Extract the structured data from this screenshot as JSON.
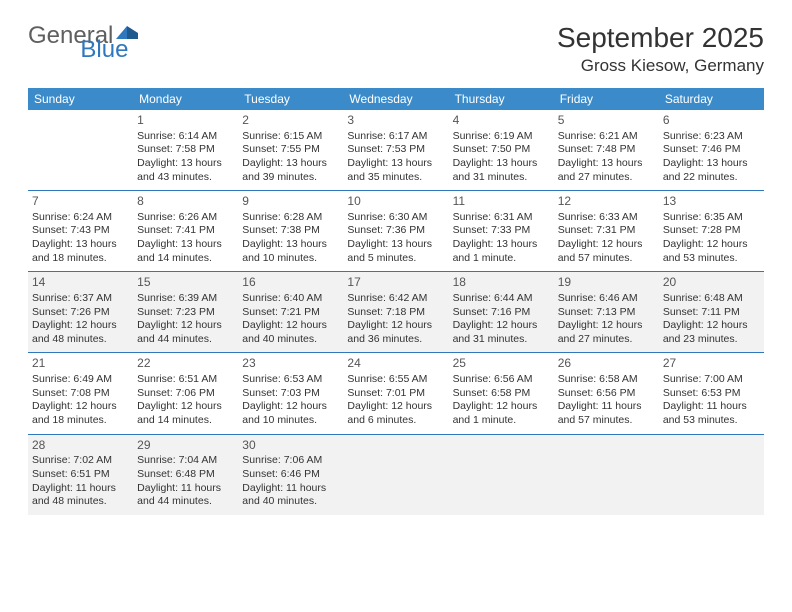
{
  "logo": {
    "g": "General",
    "b": "Blue"
  },
  "title": "September 2025",
  "location": "Gross Kiesow, Germany",
  "colors": {
    "header_bg": "#3b8bca",
    "header_text": "#ffffff",
    "rule": "#2f78bd",
    "alt_row": "#f2f2f2",
    "text": "#333333",
    "logo_gray": "#5f5f5f",
    "logo_blue": "#2f78bd"
  },
  "days_of_week": [
    "Sunday",
    "Monday",
    "Tuesday",
    "Wednesday",
    "Thursday",
    "Friday",
    "Saturday"
  ],
  "weeks": [
    [
      null,
      {
        "n": "1",
        "sr": "Sunrise: 6:14 AM",
        "ss": "Sunset: 7:58 PM",
        "d1": "Daylight: 13 hours",
        "d2": "and 43 minutes."
      },
      {
        "n": "2",
        "sr": "Sunrise: 6:15 AM",
        "ss": "Sunset: 7:55 PM",
        "d1": "Daylight: 13 hours",
        "d2": "and 39 minutes."
      },
      {
        "n": "3",
        "sr": "Sunrise: 6:17 AM",
        "ss": "Sunset: 7:53 PM",
        "d1": "Daylight: 13 hours",
        "d2": "and 35 minutes."
      },
      {
        "n": "4",
        "sr": "Sunrise: 6:19 AM",
        "ss": "Sunset: 7:50 PM",
        "d1": "Daylight: 13 hours",
        "d2": "and 31 minutes."
      },
      {
        "n": "5",
        "sr": "Sunrise: 6:21 AM",
        "ss": "Sunset: 7:48 PM",
        "d1": "Daylight: 13 hours",
        "d2": "and 27 minutes."
      },
      {
        "n": "6",
        "sr": "Sunrise: 6:23 AM",
        "ss": "Sunset: 7:46 PM",
        "d1": "Daylight: 13 hours",
        "d2": "and 22 minutes."
      }
    ],
    [
      {
        "n": "7",
        "sr": "Sunrise: 6:24 AM",
        "ss": "Sunset: 7:43 PM",
        "d1": "Daylight: 13 hours",
        "d2": "and 18 minutes."
      },
      {
        "n": "8",
        "sr": "Sunrise: 6:26 AM",
        "ss": "Sunset: 7:41 PM",
        "d1": "Daylight: 13 hours",
        "d2": "and 14 minutes."
      },
      {
        "n": "9",
        "sr": "Sunrise: 6:28 AM",
        "ss": "Sunset: 7:38 PM",
        "d1": "Daylight: 13 hours",
        "d2": "and 10 minutes."
      },
      {
        "n": "10",
        "sr": "Sunrise: 6:30 AM",
        "ss": "Sunset: 7:36 PM",
        "d1": "Daylight: 13 hours",
        "d2": "and 5 minutes."
      },
      {
        "n": "11",
        "sr": "Sunrise: 6:31 AM",
        "ss": "Sunset: 7:33 PM",
        "d1": "Daylight: 13 hours",
        "d2": "and 1 minute."
      },
      {
        "n": "12",
        "sr": "Sunrise: 6:33 AM",
        "ss": "Sunset: 7:31 PM",
        "d1": "Daylight: 12 hours",
        "d2": "and 57 minutes."
      },
      {
        "n": "13",
        "sr": "Sunrise: 6:35 AM",
        "ss": "Sunset: 7:28 PM",
        "d1": "Daylight: 12 hours",
        "d2": "and 53 minutes."
      }
    ],
    [
      {
        "n": "14",
        "sr": "Sunrise: 6:37 AM",
        "ss": "Sunset: 7:26 PM",
        "d1": "Daylight: 12 hours",
        "d2": "and 48 minutes."
      },
      {
        "n": "15",
        "sr": "Sunrise: 6:39 AM",
        "ss": "Sunset: 7:23 PM",
        "d1": "Daylight: 12 hours",
        "d2": "and 44 minutes."
      },
      {
        "n": "16",
        "sr": "Sunrise: 6:40 AM",
        "ss": "Sunset: 7:21 PM",
        "d1": "Daylight: 12 hours",
        "d2": "and 40 minutes."
      },
      {
        "n": "17",
        "sr": "Sunrise: 6:42 AM",
        "ss": "Sunset: 7:18 PM",
        "d1": "Daylight: 12 hours",
        "d2": "and 36 minutes."
      },
      {
        "n": "18",
        "sr": "Sunrise: 6:44 AM",
        "ss": "Sunset: 7:16 PM",
        "d1": "Daylight: 12 hours",
        "d2": "and 31 minutes."
      },
      {
        "n": "19",
        "sr": "Sunrise: 6:46 AM",
        "ss": "Sunset: 7:13 PM",
        "d1": "Daylight: 12 hours",
        "d2": "and 27 minutes."
      },
      {
        "n": "20",
        "sr": "Sunrise: 6:48 AM",
        "ss": "Sunset: 7:11 PM",
        "d1": "Daylight: 12 hours",
        "d2": "and 23 minutes."
      }
    ],
    [
      {
        "n": "21",
        "sr": "Sunrise: 6:49 AM",
        "ss": "Sunset: 7:08 PM",
        "d1": "Daylight: 12 hours",
        "d2": "and 18 minutes."
      },
      {
        "n": "22",
        "sr": "Sunrise: 6:51 AM",
        "ss": "Sunset: 7:06 PM",
        "d1": "Daylight: 12 hours",
        "d2": "and 14 minutes."
      },
      {
        "n": "23",
        "sr": "Sunrise: 6:53 AM",
        "ss": "Sunset: 7:03 PM",
        "d1": "Daylight: 12 hours",
        "d2": "and 10 minutes."
      },
      {
        "n": "24",
        "sr": "Sunrise: 6:55 AM",
        "ss": "Sunset: 7:01 PM",
        "d1": "Daylight: 12 hours",
        "d2": "and 6 minutes."
      },
      {
        "n": "25",
        "sr": "Sunrise: 6:56 AM",
        "ss": "Sunset: 6:58 PM",
        "d1": "Daylight: 12 hours",
        "d2": "and 1 minute."
      },
      {
        "n": "26",
        "sr": "Sunrise: 6:58 AM",
        "ss": "Sunset: 6:56 PM",
        "d1": "Daylight: 11 hours",
        "d2": "and 57 minutes."
      },
      {
        "n": "27",
        "sr": "Sunrise: 7:00 AM",
        "ss": "Sunset: 6:53 PM",
        "d1": "Daylight: 11 hours",
        "d2": "and 53 minutes."
      }
    ],
    [
      {
        "n": "28",
        "sr": "Sunrise: 7:02 AM",
        "ss": "Sunset: 6:51 PM",
        "d1": "Daylight: 11 hours",
        "d2": "and 48 minutes."
      },
      {
        "n": "29",
        "sr": "Sunrise: 7:04 AM",
        "ss": "Sunset: 6:48 PM",
        "d1": "Daylight: 11 hours",
        "d2": "and 44 minutes."
      },
      {
        "n": "30",
        "sr": "Sunrise: 7:06 AM",
        "ss": "Sunset: 6:46 PM",
        "d1": "Daylight: 11 hours",
        "d2": "and 40 minutes."
      },
      null,
      null,
      null,
      null
    ]
  ]
}
